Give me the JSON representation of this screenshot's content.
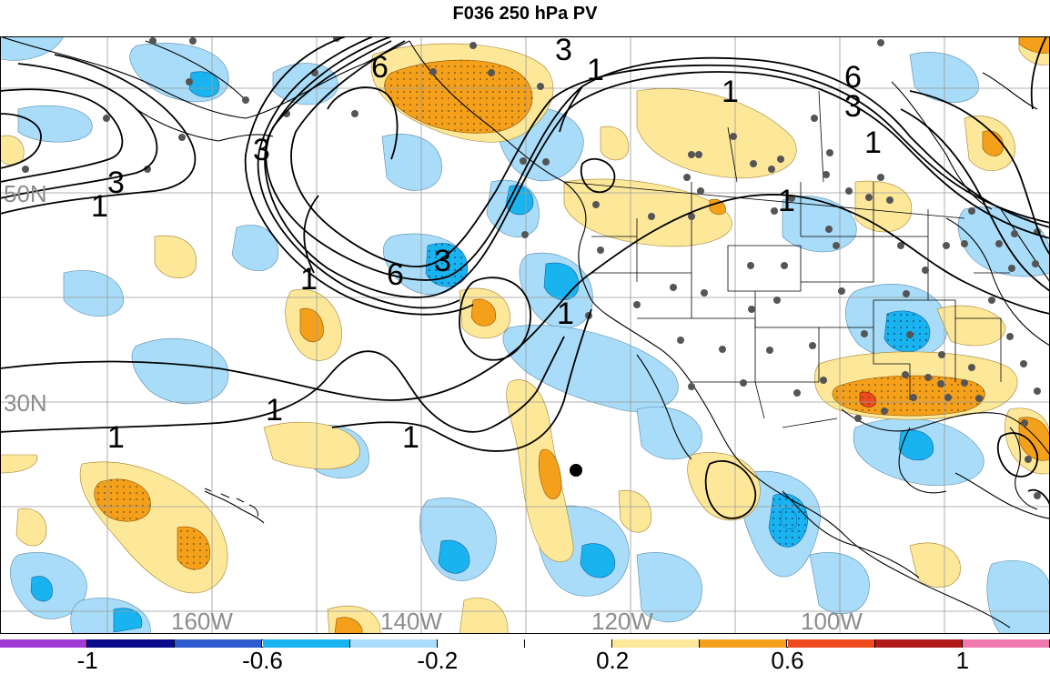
{
  "title": "F036 250 hPa PV",
  "lat_labels": [
    "50N",
    "30N"
  ],
  "lon_labels": [
    "160W",
    "140W",
    "120W",
    "100W"
  ],
  "contour_labels": [
    "6",
    "3",
    "1",
    "3",
    "1",
    "1",
    "6",
    "3",
    "3",
    "1",
    "3",
    "6",
    "1",
    "1",
    "1",
    "1",
    "1",
    "1"
  ],
  "colorbar": {
    "colors": [
      "#a03ad6",
      "#0a0a8c",
      "#2f5bd0",
      "#19b4f0",
      "#a8dcf8",
      "#ffffff",
      "#ffffff",
      "#fde89a",
      "#f5a01a",
      "#ee4a1e",
      "#b01a1a",
      "#f07ab0"
    ],
    "labels": [
      "-1",
      "-0.6",
      "-0.2",
      "0.2",
      "0.6",
      "1"
    ]
  },
  "colors": {
    "light_blue": "#a8dcf8",
    "blue": "#19b4f0",
    "light_yellow": "#fde89a",
    "orange": "#f5a01a",
    "red": "#ee4a1e"
  }
}
